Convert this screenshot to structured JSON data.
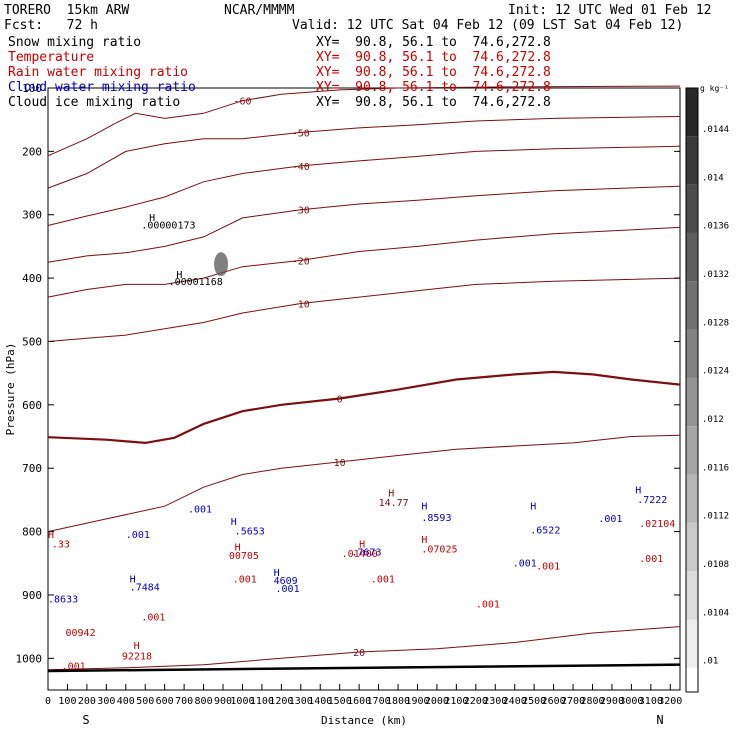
{
  "header": {
    "model": "TORERO  15km ARW",
    "org": "NCAR/MMMM",
    "init": "Init: 12 UTC Wed 01 Feb 12",
    "fcst": "Fcst:   72 h",
    "valid": "Valid: 12 UTC Sat 04 Feb 12 (09 LST Sat 04 Feb 12)"
  },
  "legend": [
    {
      "label": "Snow mixing ratio",
      "xy": "XY=  90.8, 56.1 to  74.6,272.8",
      "color": "#000000"
    },
    {
      "label": "Temperature",
      "xy": "XY=  90.8, 56.1 to  74.6,272.8",
      "color": "#c80000"
    },
    {
      "label": "Rain water mixing ratio",
      "xy": "XY=  90.8, 56.1 to  74.6,272.8",
      "color": "#c80000"
    },
    {
      "label": "Cloud water mixing ratio",
      "xy": "XY=  90.8, 56.1 to  74.6,272.8",
      "color": "#0000c8"
    },
    {
      "label": "Cloud ice mixing ratio",
      "xy": "XY=  90.8, 56.1 to  74.6,272.8",
      "color": "#000000"
    }
  ],
  "chart_data": {
    "type": "contour",
    "xlabel": "Distance (km)",
    "ylabel": "Pressure (hPa)",
    "xlim": [
      0,
      3250
    ],
    "ylim": [
      1050,
      100
    ],
    "x_ticks": [
      0,
      100,
      200,
      300,
      400,
      500,
      600,
      700,
      800,
      900,
      1000,
      1100,
      1200,
      1300,
      1400,
      1500,
      1600,
      1700,
      1800,
      1900,
      2000,
      2100,
      2200,
      2300,
      2400,
      2500,
      2600,
      2700,
      2800,
      2900,
      3000,
      3100,
      3200
    ],
    "y_ticks": [
      100,
      200,
      300,
      400,
      500,
      600,
      700,
      800,
      900,
      1000
    ],
    "endpoints": {
      "left": "S",
      "right": "N"
    },
    "colorbar": {
      "unit": "g kg⁻¹",
      "ticks": [
        ".0144",
        ".014",
        ".0136",
        ".0132",
        ".0128",
        ".0124",
        ".012",
        ".0116",
        ".0112",
        ".0108",
        ".0104",
        ".01"
      ]
    },
    "temperature_contours": [
      {
        "label": "-60",
        "x": [
          0,
          200,
          350,
          450,
          600,
          800,
          1000,
          1200,
          1500,
          1800,
          2100,
          2500,
          3250
        ],
        "y": [
          207,
          180,
          155,
          140,
          148,
          140,
          120,
          110,
          103,
          100,
          99,
          98,
          97
        ]
      },
      {
        "label": "-50",
        "x": [
          0,
          200,
          400,
          600,
          800,
          1000,
          1300,
          1600,
          1900,
          2200,
          2600,
          3250
        ],
        "y": [
          258,
          235,
          200,
          188,
          180,
          180,
          170,
          163,
          158,
          152,
          148,
          145
        ]
      },
      {
        "label": "-40",
        "x": [
          0,
          200,
          400,
          600,
          800,
          1000,
          1300,
          1600,
          1900,
          2200,
          2600,
          3250
        ],
        "y": [
          317,
          302,
          288,
          272,
          248,
          235,
          223,
          215,
          208,
          200,
          196,
          192
        ]
      },
      {
        "label": "-30",
        "x": [
          0,
          200,
          400,
          600,
          800,
          1000,
          1300,
          1600,
          1900,
          2200,
          2600,
          3250
        ],
        "y": [
          375,
          365,
          360,
          350,
          335,
          305,
          292,
          283,
          277,
          270,
          262,
          255
        ]
      },
      {
        "label": "-20",
        "x": [
          0,
          200,
          400,
          600,
          800,
          1000,
          1300,
          1600,
          1900,
          2200,
          2600,
          3250
        ],
        "y": [
          430,
          418,
          410,
          410,
          400,
          382,
          372,
          358,
          350,
          340,
          330,
          320
        ]
      },
      {
        "label": "-10",
        "x": [
          0,
          200,
          400,
          600,
          800,
          1000,
          1300,
          1600,
          1900,
          2200,
          2600,
          3250
        ],
        "y": [
          500,
          495,
          490,
          480,
          470,
          455,
          440,
          430,
          420,
          410,
          405,
          400
        ]
      },
      {
        "label": "0",
        "x": [
          0,
          300,
          500,
          650,
          800,
          1000,
          1200,
          1500,
          1800,
          2100,
          2400,
          2600,
          2800,
          3000,
          3250
        ],
        "y": [
          651,
          655,
          660,
          652,
          630,
          610,
          600,
          590,
          576,
          560,
          552,
          548,
          552,
          560,
          568
        ]
      },
      {
        "label": "10",
        "x": [
          0,
          300,
          600,
          800,
          1000,
          1200,
          1500,
          1800,
          2100,
          2400,
          2700,
          3000,
          3250
        ],
        "y": [
          800,
          780,
          760,
          730,
          710,
          700,
          690,
          680,
          670,
          665,
          660,
          650,
          648
        ]
      },
      {
        "label": "20",
        "x": [
          0,
          400,
          800,
          1200,
          1600,
          2000,
          2400,
          2800,
          3250
        ],
        "y": [
          1018,
          1015,
          1010,
          1000,
          990,
          985,
          975,
          960,
          950
        ]
      }
    ],
    "labels": [
      {
        "text": "H",
        "x": 520,
        "y": 310,
        "series": "Snow mixing ratio"
      },
      {
        "text": ".00000173",
        "x": 480,
        "y": 322,
        "series": "Snow mixing ratio"
      },
      {
        "text": "H",
        "x": 660,
        "y": 400,
        "series": "Snow mixing ratio"
      },
      {
        "text": ".00001168",
        "x": 620,
        "y": 411,
        "series": "Snow mixing ratio"
      },
      {
        "text": ".001",
        "x": 720,
        "y": 770,
        "series": "Cloud water mixing ratio"
      },
      {
        "text": ".001",
        "x": 400,
        "y": 810,
        "series": "Cloud water mixing ratio"
      },
      {
        "text": "H",
        "x": 940,
        "y": 790,
        "series": "Cloud water mixing ratio"
      },
      {
        "text": ".5653",
        "x": 960,
        "y": 805,
        "series": "Cloud water mixing ratio"
      },
      {
        "text": "H",
        "x": 960,
        "y": 830,
        "series": "Rain water mixing ratio"
      },
      {
        "text": "00705",
        "x": 930,
        "y": 843,
        "series": "Rain water mixing ratio"
      },
      {
        "text": "H",
        "x": 1160,
        "y": 870,
        "series": "Cloud water mixing ratio"
      },
      {
        "text": "4609",
        "x": 1160,
        "y": 883,
        "series": "Cloud water mixing ratio"
      },
      {
        "text": ".001",
        "x": 1170,
        "y": 895,
        "series": "Cloud water mixing ratio"
      },
      {
        "text": ".001",
        "x": 950,
        "y": 880,
        "series": "Rain water mixing ratio"
      },
      {
        "text": "H",
        "x": 420,
        "y": 880,
        "series": "Cloud water mixing ratio"
      },
      {
        "text": ".7484",
        "x": 420,
        "y": 893,
        "series": "Cloud water mixing ratio"
      },
      {
        "text": "H",
        "x": 0,
        "y": 810,
        "series": "Rain water mixing ratio"
      },
      {
        "text": ".33",
        "x": 20,
        "y": 825,
        "series": "Rain water mixing ratio"
      },
      {
        "text": ".8633",
        "x": 0,
        "y": 912,
        "series": "Cloud water mixing ratio"
      },
      {
        "text": "00942",
        "x": 90,
        "y": 965,
        "series": "Rain water mixing ratio"
      },
      {
        "text": ".001",
        "x": 480,
        "y": 940,
        "series": "Rain water mixing ratio"
      },
      {
        "text": "H",
        "x": 440,
        "y": 985,
        "series": "Rain water mixing ratio"
      },
      {
        "text": "92218",
        "x": 380,
        "y": 1002,
        "series": "Rain water mixing ratio"
      },
      {
        "text": ".001",
        "x": 70,
        "y": 1018,
        "series": "Rain water mixing ratio"
      },
      {
        "text": "H",
        "x": 1600,
        "y": 825,
        "series": "Rain water mixing ratio"
      },
      {
        "text": ".01400",
        "x": 1510,
        "y": 840,
        "series": "Rain water mixing ratio"
      },
      {
        "text": ".7673",
        "x": 1560,
        "y": 838,
        "series": "Cloud water mixing ratio"
      },
      {
        "text": ".001",
        "x": 1660,
        "y": 880,
        "series": "Rain water mixing ratio"
      },
      {
        "text": "H",
        "x": 1750,
        "y": 745,
        "series": "Temperature"
      },
      {
        "text": "14.77",
        "x": 1700,
        "y": 760,
        "series": "Temperature"
      },
      {
        "text": "H",
        "x": 1920,
        "y": 765,
        "series": "Cloud water mixing ratio"
      },
      {
        "text": ".8593",
        "x": 1920,
        "y": 783,
        "series": "Cloud water mixing ratio"
      },
      {
        "text": "H",
        "x": 1920,
        "y": 818,
        "series": "Rain water mixing ratio"
      },
      {
        "text": ".07025",
        "x": 1920,
        "y": 833,
        "series": "Rain water mixing ratio"
      },
      {
        "text": ".001",
        "x": 2200,
        "y": 920,
        "series": "Rain water mixing ratio"
      },
      {
        "text": ".001",
        "x": 2390,
        "y": 855,
        "series": "Cloud water mixing ratio"
      },
      {
        "text": "H",
        "x": 2480,
        "y": 765,
        "series": "Cloud water mixing ratio"
      },
      {
        "text": ".6522",
        "x": 2480,
        "y": 803,
        "series": "Cloud water mixing ratio"
      },
      {
        "text": ".001",
        "x": 2510,
        "y": 860,
        "series": "Rain water mixing ratio"
      },
      {
        "text": ".001",
        "x": 2830,
        "y": 785,
        "series": "Cloud water mixing ratio"
      },
      {
        "text": "H",
        "x": 3020,
        "y": 740,
        "series": "Cloud water mixing ratio"
      },
      {
        "text": ".7222",
        "x": 3030,
        "y": 755,
        "series": "Cloud water mixing ratio"
      },
      {
        "text": ".02104",
        "x": 3040,
        "y": 793,
        "series": "Rain water mixing ratio"
      },
      {
        "text": ".001",
        "x": 3040,
        "y": 848,
        "series": "Rain water mixing ratio"
      }
    ],
    "snow_max": [
      {
        "x": 890,
        "y": 378
      }
    ],
    "terrain": {
      "x": [
        0,
        3250
      ],
      "y": [
        1020,
        1010
      ]
    }
  }
}
